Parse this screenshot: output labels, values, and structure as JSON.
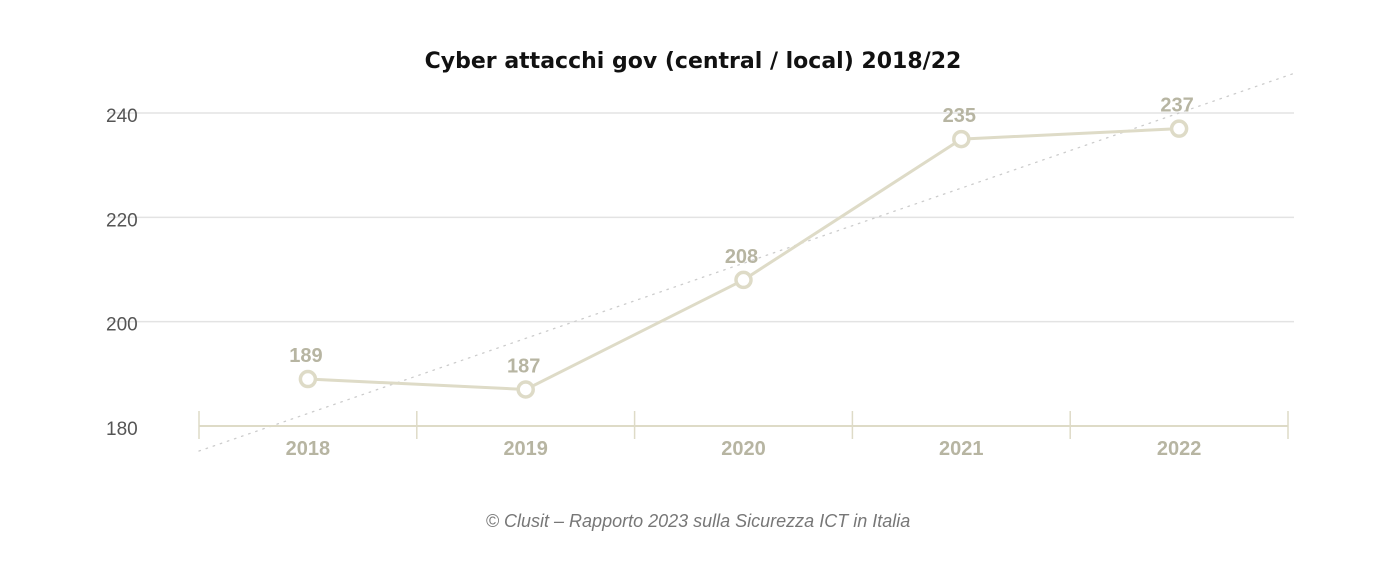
{
  "chart_data": {
    "type": "line",
    "title": "Cyber attacchi gov (central / local) 2018/22",
    "categories": [
      "2018",
      "2019",
      "2020",
      "2021",
      "2022"
    ],
    "series": [
      {
        "values": [
          189,
          187,
          208,
          235,
          237
        ]
      }
    ],
    "data_labels": [
      "189",
      "187",
      "208",
      "235",
      "237"
    ],
    "y_ticks": [
      "180",
      "200",
      "220",
      "240"
    ],
    "ylim": [
      180,
      240
    ],
    "grid": true,
    "trendline": true,
    "xlabel": "",
    "ylabel": "",
    "colors": {
      "line": "#dedbc7",
      "label": "#b7b5a2",
      "grid": "#e3e3e3",
      "trend": "#cccccc"
    }
  },
  "footer": {
    "source": "© Clusit – Rapporto 2023 sulla Sicurezza ICT in Italia"
  }
}
